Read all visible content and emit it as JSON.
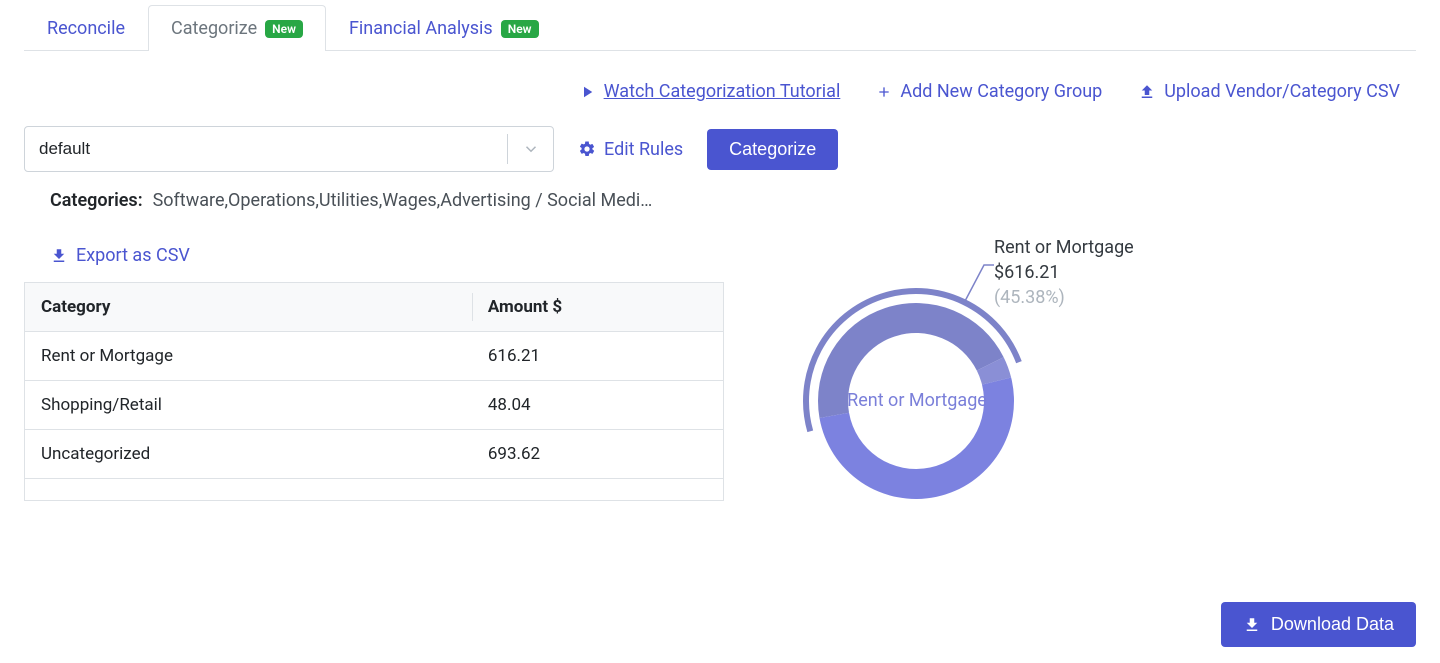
{
  "colors": {
    "primary": "#4a55d0",
    "badge_bg": "#28a745",
    "text_muted": "#6c757d",
    "text": "#212529",
    "border": "#dee2e6",
    "chart_outer_arc": "#7d83c9",
    "chart_slice1": "#7d83c9",
    "chart_slice2": "#8a8fd6",
    "chart_slice3": "#7c82e0",
    "callout_label": "#343a40",
    "callout_pct": "#adb5bd",
    "center_label": "#7a7fd9"
  },
  "tabs": [
    {
      "label": "Reconcile",
      "has_new": false,
      "active": false
    },
    {
      "label": "Categorize",
      "has_new": true,
      "new_text": "New",
      "active": true
    },
    {
      "label": "Financial Analysis",
      "has_new": true,
      "new_text": "New",
      "active": false
    }
  ],
  "actions": {
    "tutorial": "Watch Categorization Tutorial",
    "add_group": "Add New Category Group",
    "upload_csv": "Upload Vendor/Category CSV"
  },
  "controls": {
    "select_value": "default",
    "edit_rules": "Edit Rules",
    "categorize_btn": "Categorize"
  },
  "categories_line": {
    "label": "Categories:",
    "text": "Software,Operations,Utilities,Wages,Advertising / Social Medi…"
  },
  "export_label": "Export as CSV",
  "table": {
    "columns": [
      "Category",
      "Amount $"
    ],
    "rows": [
      [
        "Rent or Mortgage",
        "616.21"
      ],
      [
        "Shopping/Retail",
        "48.04"
      ],
      [
        "Uncategorized",
        "693.62"
      ]
    ]
  },
  "chart": {
    "type": "donut",
    "center_label": "Rent or Mortgage",
    "highlighted": {
      "title": "Rent or Mortgage",
      "value": "$616.21",
      "pct": "(45.38%)"
    },
    "slices": [
      {
        "label": "Rent or Mortgage",
        "value": 616.21,
        "pct": 45.38,
        "color": "#7d83c9"
      },
      {
        "label": "Shopping/Retail",
        "value": 48.04,
        "pct": 3.54,
        "color": "#8a8fd6"
      },
      {
        "label": "Uncategorized",
        "value": 693.62,
        "pct": 51.08,
        "color": "#7c82e0"
      }
    ],
    "outer_arc_color": "#7d83c9",
    "inner_radius": 68,
    "outer_radius": 98,
    "halo_radius": 110
  },
  "download_label": "Download Data"
}
